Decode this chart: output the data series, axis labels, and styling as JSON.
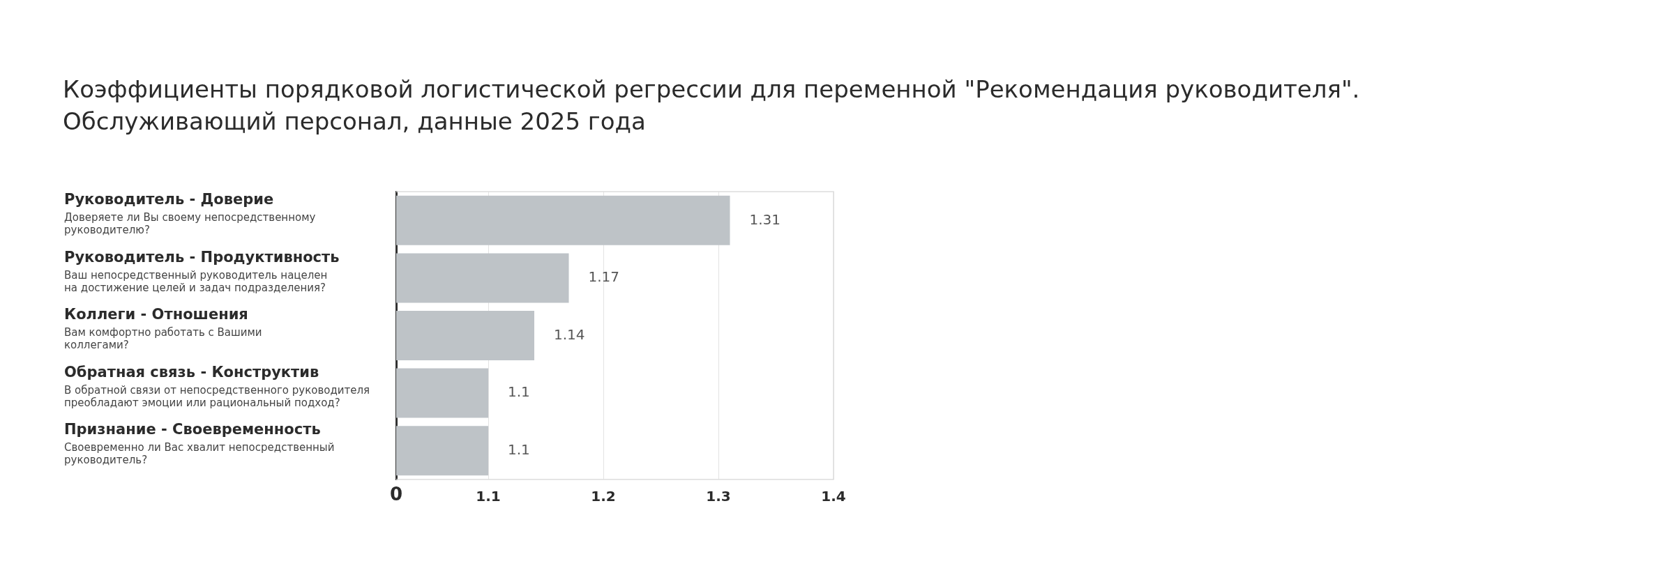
{
  "chart_data": {
    "type": "bar",
    "orientation": "horizontal",
    "title": "Коэффициенты порядковой логистической регрессии для переменной \"Рекомендация руководителя\".\nОбслуживающий персонал, данные 2025 года",
    "categories": [
      "Руководитель - Доверие\nДоверяете ли Вы своему непосредственному\nруководителю?",
      "Руководитель - Продуктивность\nВаш непосредственный руководитель нацелен\nна достижение целей и задач подразделения?",
      "Коллеги - Отношения\nВам комфортно работать с Вашими\nколлегами?",
      "Обратная связь - Конструктив\nВ обратной связи от непосредственного руководителя\nпреобладают эмоции или рациональный подход?",
      "Признание - Своевременность\nСвоевременно ли Вас хвалит непосредственный\nруководитель?"
    ],
    "values": [
      1.31,
      1.17,
      1.14,
      1.1,
      1.1
    ],
    "color": "#bec3c7",
    "xlim": [
      1.02,
      1.4
    ],
    "xticks": [
      1.1,
      1.2,
      1.3,
      1.4
    ],
    "annotations": [
      "0"
    ],
    "grid": "x",
    "data_labels": true,
    "legend": false
  }
}
